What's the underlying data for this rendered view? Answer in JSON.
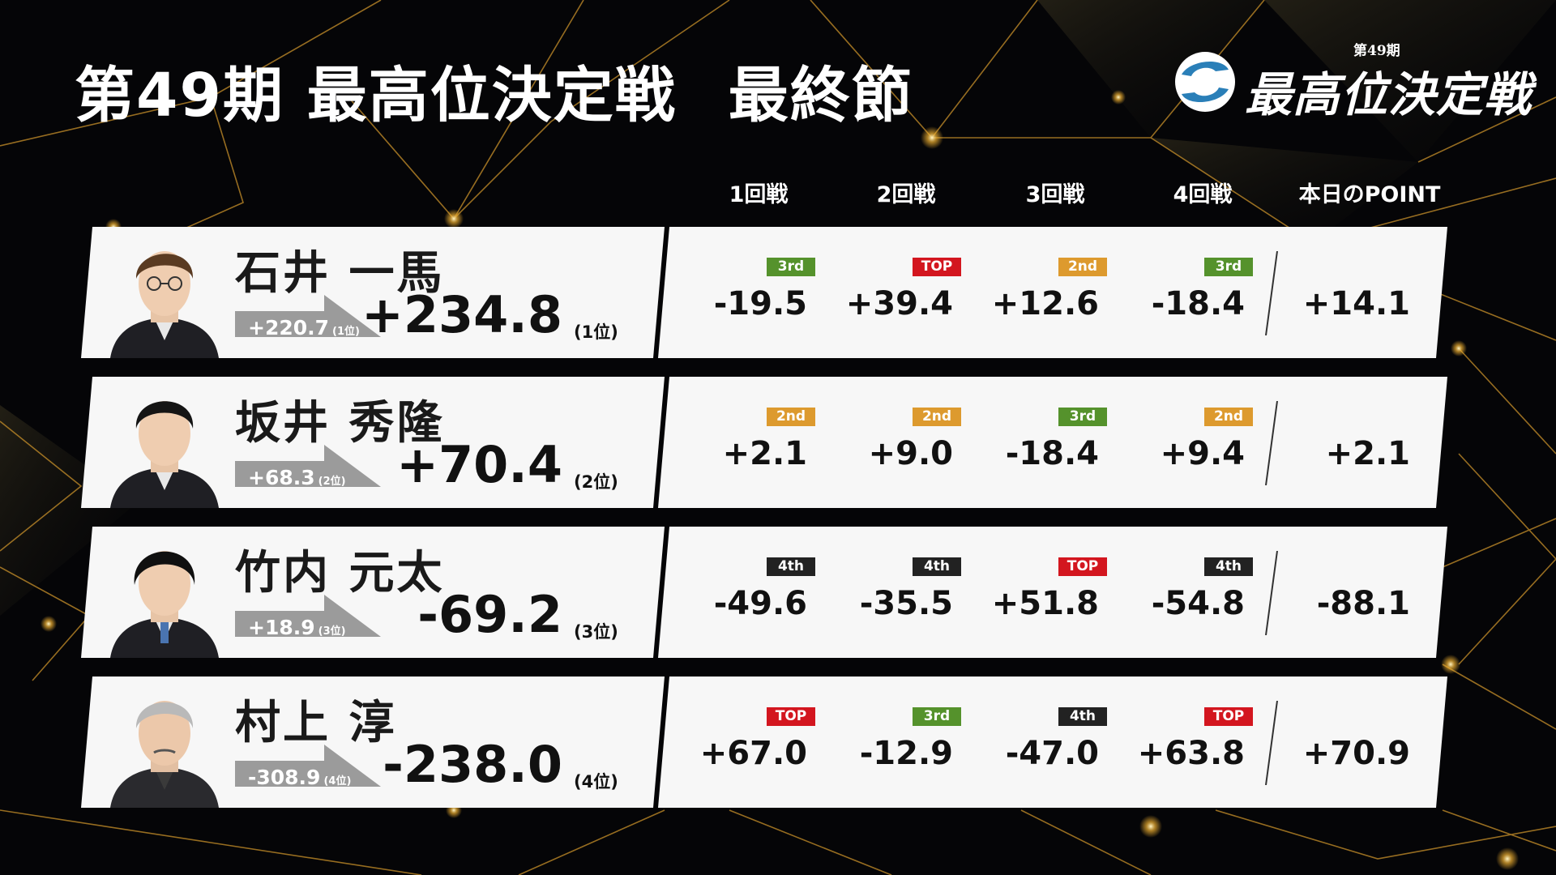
{
  "header": {
    "title_main": "第49期 最高位決定戦",
    "title_sub": "最終節",
    "logo_edition": "第49期",
    "logo_name": "最高位決定戦"
  },
  "columns": [
    "1回戦",
    "2回戦",
    "3回戦",
    "4回戦",
    "本日のPOINT"
  ],
  "badge_colors": {
    "TOP": "#d3161f",
    "2nd": "#dd9a2e",
    "3rd": "#55922c",
    "4th": "#222222"
  },
  "players": [
    {
      "name": "石井 一馬",
      "prev_points": "+220.7",
      "prev_rank": "(1位)",
      "total": "+234.8",
      "rank": "(1位)",
      "games": [
        {
          "rank": "3rd",
          "score": "-19.5"
        },
        {
          "rank": "TOP",
          "score": "+39.4"
        },
        {
          "rank": "2nd",
          "score": "+12.6"
        },
        {
          "rank": "3rd",
          "score": "-18.4"
        }
      ],
      "day_point": "+14.1"
    },
    {
      "name": "坂井 秀隆",
      "prev_points": "+68.3",
      "prev_rank": "(2位)",
      "total": "+70.4",
      "rank": "(2位)",
      "games": [
        {
          "rank": "2nd",
          "score": "+2.1"
        },
        {
          "rank": "2nd",
          "score": "+9.0"
        },
        {
          "rank": "3rd",
          "score": "-18.4"
        },
        {
          "rank": "2nd",
          "score": "+9.4"
        }
      ],
      "day_point": "+2.1"
    },
    {
      "name": "竹内 元太",
      "prev_points": "+18.9",
      "prev_rank": "(3位)",
      "total": "-69.2",
      "rank": "(3位)",
      "games": [
        {
          "rank": "4th",
          "score": "-49.6"
        },
        {
          "rank": "4th",
          "score": "-35.5"
        },
        {
          "rank": "TOP",
          "score": "+51.8"
        },
        {
          "rank": "4th",
          "score": "-54.8"
        }
      ],
      "day_point": "-88.1"
    },
    {
      "name": "村上 淳",
      "prev_points": "-308.9",
      "prev_rank": "(4位)",
      "total": "-238.0",
      "rank": "(4位)",
      "games": [
        {
          "rank": "TOP",
          "score": "+67.0"
        },
        {
          "rank": "3rd",
          "score": "-12.9"
        },
        {
          "rank": "4th",
          "score": "-47.0"
        },
        {
          "rank": "TOP",
          "score": "+63.8"
        }
      ],
      "day_point": "+70.9"
    }
  ]
}
